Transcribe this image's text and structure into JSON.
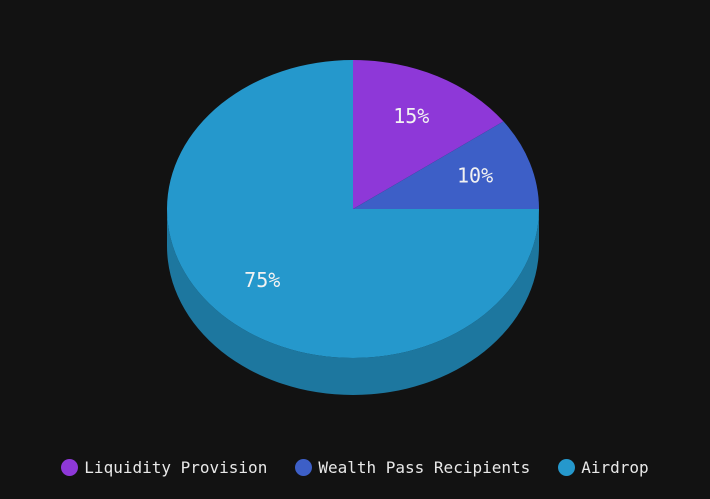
{
  "chart_data": {
    "type": "pie",
    "title": "",
    "slices": [
      {
        "label": "Liquidity Provision",
        "value": 15,
        "display": "15%",
        "color": "#8e38d8"
      },
      {
        "label": "Wealth Pass Recipients",
        "value": 10,
        "display": "10%",
        "color": "#3d5fc7"
      },
      {
        "label": "Airdrop",
        "value": 75,
        "display": "75%",
        "color": "#2598cc"
      }
    ],
    "style": "3d",
    "legend_position": "bottom"
  },
  "colors": {
    "background": "#121212",
    "text": "#f2f2f2"
  }
}
